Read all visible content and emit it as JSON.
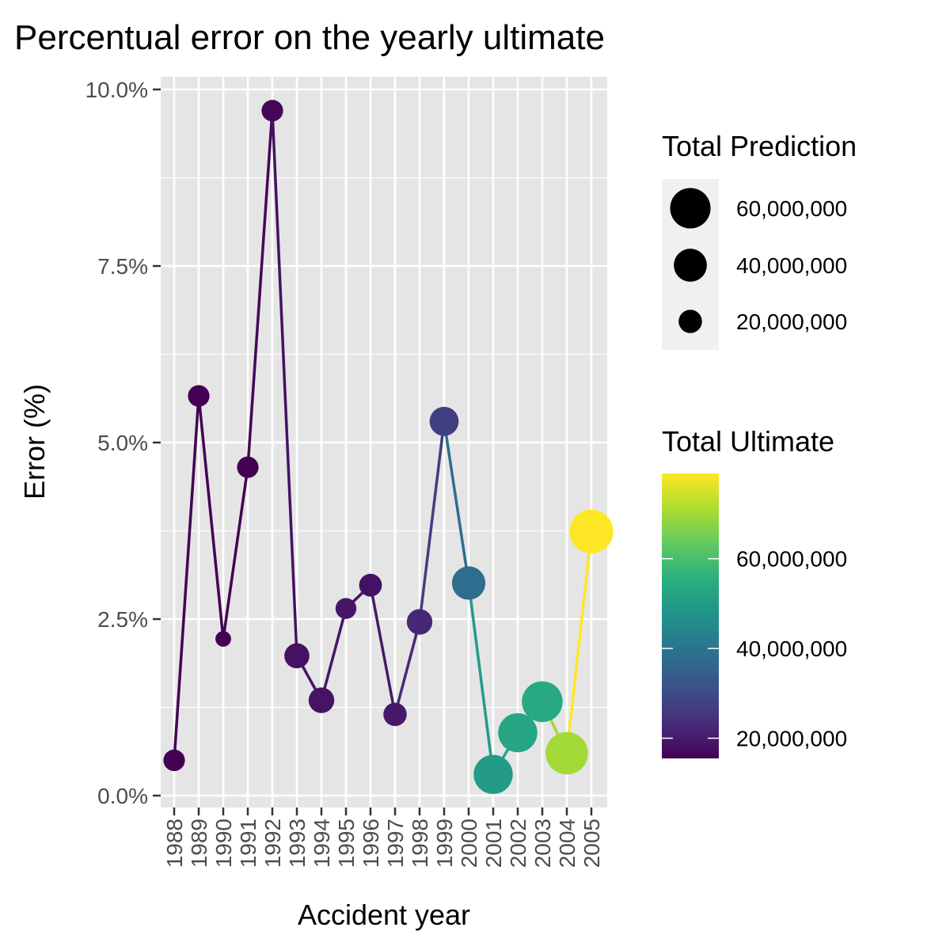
{
  "chart_data": {
    "type": "line",
    "title": "Percentual error on the yearly ultimate",
    "xlabel": "Accident year",
    "ylabel": "Error (%)",
    "ylim": [
      0,
      0.1
    ],
    "y_ticks": [
      0,
      0.025,
      0.05,
      0.075,
      0.1
    ],
    "y_tick_labels": [
      "0.0%",
      "2.5%",
      "5.0%",
      "7.5%",
      "10.0%"
    ],
    "grid": true,
    "panel_background": "#e5e5e5",
    "categories": [
      "1988",
      "1989",
      "1990",
      "1991",
      "1992",
      "1993",
      "1994",
      "1995",
      "1996",
      "1997",
      "1998",
      "1999",
      "2000",
      "2001",
      "2002",
      "2003",
      "2004",
      "2005"
    ],
    "series": [
      {
        "error": [
          0.005,
          0.0566,
          0.0222,
          0.0465,
          0.097,
          0.0198,
          0.0135,
          0.0265,
          0.0298,
          0.0115,
          0.0246,
          0.053,
          0.0301,
          0.003,
          0.0089,
          0.0133,
          0.006,
          0.0374
        ],
        "total_prediction": [
          17000000,
          17000000,
          9000000,
          17000000,
          17000000,
          23000000,
          24000000,
          16000000,
          19000000,
          20000000,
          24000000,
          31000000,
          41000000,
          56000000,
          56000000,
          61000000,
          66000000,
          70000000
        ],
        "total_ultimate": [
          15500000,
          15500000,
          15500000,
          15500000,
          16500000,
          18500000,
          19000000,
          19500000,
          18500000,
          20000000,
          22500000,
          27000000,
          38000000,
          50000000,
          53000000,
          54000000,
          70000000,
          79000000
        ]
      }
    ],
    "legend": {
      "placement": "right",
      "size": {
        "title": "Total Prediction",
        "breaks": [
          60000000,
          40000000,
          20000000
        ],
        "labels": [
          "60,000,000",
          "40,000,000",
          "20,000,000"
        ]
      },
      "color": {
        "title": "Total Ultimate",
        "breaks": [
          60000000,
          40000000,
          20000000
        ],
        "labels": [
          "60,000,000",
          "40,000,000",
          "20,000,000"
        ],
        "domain": [
          15500000,
          79000000
        ],
        "palette": "viridis"
      }
    }
  }
}
